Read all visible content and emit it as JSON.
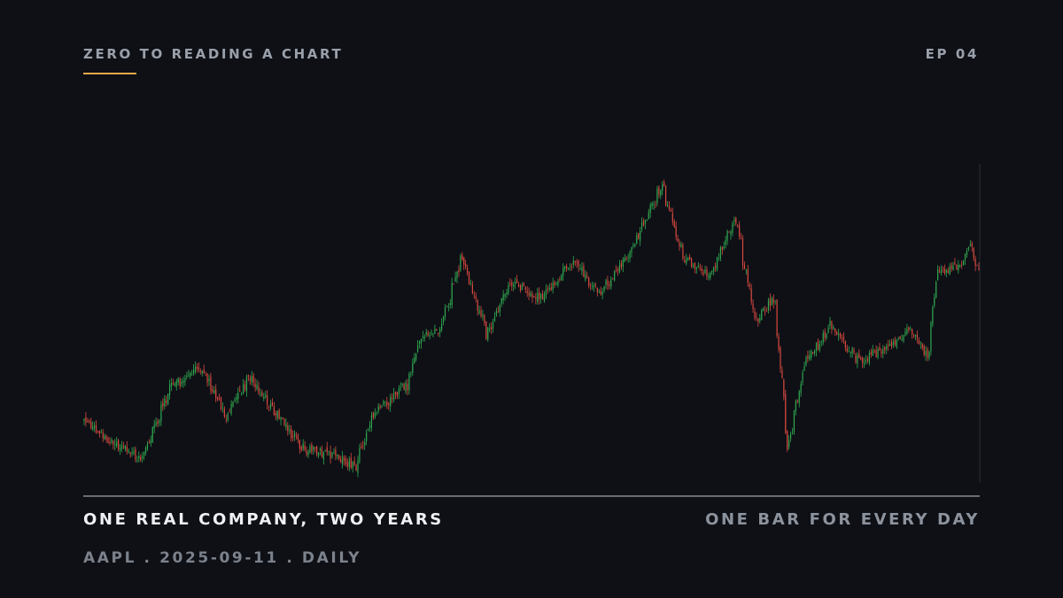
{
  "header": {
    "series_title": "ZERO TO READING A CHART",
    "episode": "EP 04",
    "accent_color": "#e6a84a"
  },
  "footer": {
    "caption_left": "ONE REAL COMPANY, TWO YEARS",
    "caption_right": "ONE BAR FOR EVERY DAY",
    "meta": "AAPL . 2025-09-11 . DAILY"
  },
  "colors": {
    "background": "#0e1016",
    "up": "#2fa84f",
    "down": "#d9493e",
    "baseline": "#c4c8ce"
  },
  "chart_data": {
    "type": "candlestick",
    "ticker": "AAPL",
    "interval": "daily",
    "end_date": "2025-09-11",
    "axes_shown": false,
    "grid": false,
    "legend": "none",
    "price_range": [
      160,
      265
    ],
    "approximate_close_path": [
      {
        "date": "2023-09-11",
        "close": 181
      },
      {
        "date": "2023-10-02",
        "close": 173
      },
      {
        "date": "2023-10-27",
        "close": 168
      },
      {
        "date": "2023-11-20",
        "close": 191
      },
      {
        "date": "2023-12-14",
        "close": 198
      },
      {
        "date": "2024-01-04",
        "close": 182
      },
      {
        "date": "2024-01-24",
        "close": 195
      },
      {
        "date": "2024-02-16",
        "close": 182
      },
      {
        "date": "2024-03-08",
        "close": 171
      },
      {
        "date": "2024-04-02",
        "close": 169
      },
      {
        "date": "2024-04-19",
        "close": 165
      },
      {
        "date": "2024-05-03",
        "close": 183
      },
      {
        "date": "2024-05-31",
        "close": 192
      },
      {
        "date": "2024-06-11",
        "close": 207
      },
      {
        "date": "2024-06-28",
        "close": 211
      },
      {
        "date": "2024-07-15",
        "close": 234
      },
      {
        "date": "2024-08-05",
        "close": 209
      },
      {
        "date": "2024-08-23",
        "close": 226
      },
      {
        "date": "2024-09-18",
        "close": 221
      },
      {
        "date": "2024-10-15",
        "close": 233
      },
      {
        "date": "2024-11-06",
        "close": 222
      },
      {
        "date": "2024-12-02",
        "close": 238
      },
      {
        "date": "2024-12-26",
        "close": 258
      },
      {
        "date": "2025-01-13",
        "close": 234
      },
      {
        "date": "2025-02-03",
        "close": 228
      },
      {
        "date": "2025-02-24",
        "close": 247
      },
      {
        "date": "2025-03-13",
        "close": 213
      },
      {
        "date": "2025-03-28",
        "close": 221
      },
      {
        "date": "2025-04-08",
        "close": 172
      },
      {
        "date": "2025-04-22",
        "close": 199
      },
      {
        "date": "2025-05-13",
        "close": 212
      },
      {
        "date": "2025-06-05",
        "close": 200
      },
      {
        "date": "2025-06-30",
        "close": 205
      },
      {
        "date": "2025-07-17",
        "close": 210
      },
      {
        "date": "2025-08-01",
        "close": 202
      },
      {
        "date": "2025-08-08",
        "close": 229
      },
      {
        "date": "2025-08-29",
        "close": 232
      },
      {
        "date": "2025-09-04",
        "close": 239
      },
      {
        "date": "2025-09-11",
        "close": 230
      }
    ]
  }
}
